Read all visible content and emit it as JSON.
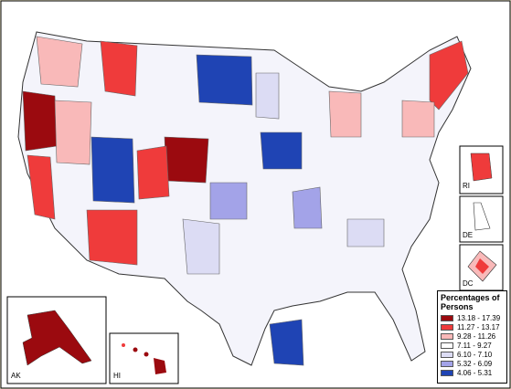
{
  "map": {
    "legend": {
      "title": "Percentages of Persons",
      "items": [
        {
          "label": "13.18 - 17.39",
          "color": "#9b0a0f"
        },
        {
          "label": "11.27 - 13.17",
          "color": "#ef3b3b"
        },
        {
          "label": "9.28 - 11.26",
          "color": "#f9b9b9"
        },
        {
          "label": "7.11 - 9.27",
          "color": "#ffffff"
        },
        {
          "label": "6.10 - 7.10",
          "color": "#dcdcf4"
        },
        {
          "label": "5.32 - 6.09",
          "color": "#a3a3e8"
        },
        {
          "label": "4.06 - 5.31",
          "color": "#1f44b4"
        }
      ]
    },
    "insets": [
      "AK",
      "HI",
      "RI",
      "DE",
      "DC"
    ]
  }
}
